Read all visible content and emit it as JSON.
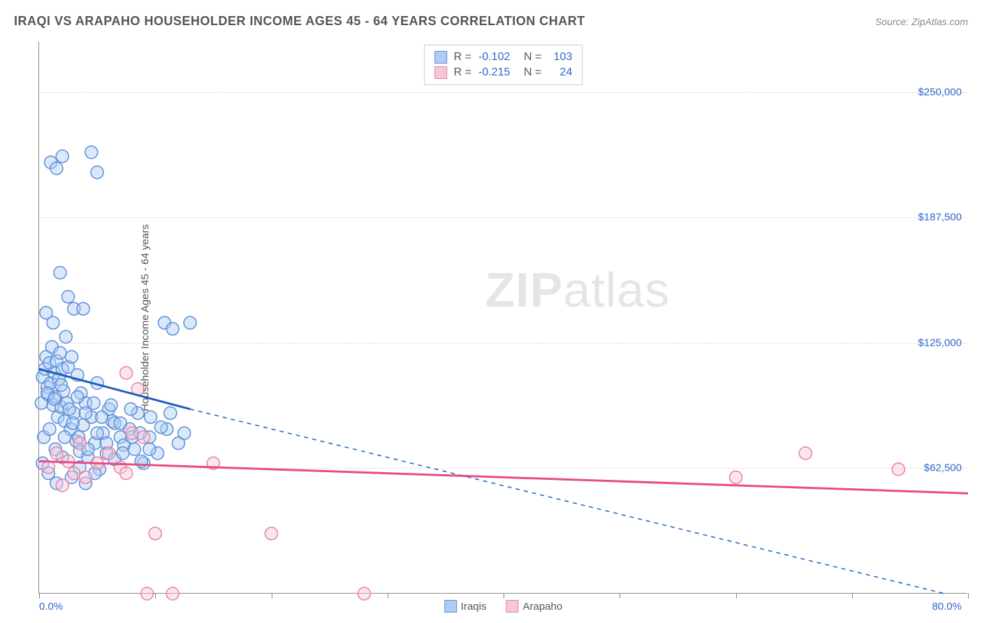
{
  "header": {
    "title": "IRAQI VS ARAPAHO HOUSEHOLDER INCOME AGES 45 - 64 YEARS CORRELATION CHART",
    "source": "Source: ZipAtlas.com"
  },
  "watermark": {
    "zip": "ZIP",
    "atlas": "atlas"
  },
  "chart": {
    "type": "scatter",
    "ylabel": "Householder Income Ages 45 - 64 years",
    "xlim": [
      0,
      80
    ],
    "ylim": [
      0,
      275000
    ],
    "xlabel_min": "0.0%",
    "xlabel_max": "80.0%",
    "xticks": [
      0,
      10,
      20,
      30,
      40,
      50,
      60,
      70,
      80
    ],
    "yticks": [
      {
        "value": 62500,
        "label": "$62,500"
      },
      {
        "value": 125000,
        "label": "$125,000"
      },
      {
        "value": 187500,
        "label": "$187,500"
      },
      {
        "value": 250000,
        "label": "$250,000"
      }
    ],
    "grid_color": "#dddddd",
    "background_color": "#ffffff",
    "marker_radius": 9,
    "marker_opacity": 0.45,
    "series": [
      {
        "name": "Iraqis",
        "color_fill": "#aeccf4",
        "color_stroke": "#5b8fd6",
        "line_color": "#1f5fbf",
        "stats": {
          "R": "-0.102",
          "N": "103"
        },
        "trend": {
          "x1": 0,
          "y1": 112000,
          "x2": 13,
          "y2": 92000,
          "x2_dash": 78,
          "y2_dash": 0
        },
        "points": [
          [
            0.3,
            108000
          ],
          [
            0.5,
            112000
          ],
          [
            0.6,
            118000
          ],
          [
            0.7,
            103000
          ],
          [
            0.8,
            99000
          ],
          [
            0.9,
            115000
          ],
          [
            1.0,
            105000
          ],
          [
            1.1,
            123000
          ],
          [
            1.2,
            94000
          ],
          [
            1.3,
            110000
          ],
          [
            1.4,
            98000
          ],
          [
            1.5,
            116000
          ],
          [
            1.6,
            88000
          ],
          [
            1.7,
            107000
          ],
          [
            1.8,
            120000
          ],
          [
            1.9,
            93000
          ],
          [
            2.0,
            112000
          ],
          [
            2.1,
            101000
          ],
          [
            2.2,
            86000
          ],
          [
            2.3,
            128000
          ],
          [
            2.4,
            95000
          ],
          [
            2.5,
            113000
          ],
          [
            2.7,
            82000
          ],
          [
            2.8,
            118000
          ],
          [
            3.0,
            90000
          ],
          [
            3.0,
            142000
          ],
          [
            3.2,
            76000
          ],
          [
            3.3,
            109000
          ],
          [
            3.5,
            71000
          ],
          [
            3.6,
            100000
          ],
          [
            3.8,
            84000
          ],
          [
            4.0,
            95000
          ],
          [
            4.2,
            68000
          ],
          [
            4.5,
            88000
          ],
          [
            4.8,
            75000
          ],
          [
            5.0,
            105000
          ],
          [
            5.2,
            62000
          ],
          [
            5.5,
            80000
          ],
          [
            5.8,
            70000
          ],
          [
            6.0,
            92000
          ],
          [
            6.3,
            86000
          ],
          [
            6.5,
            67000
          ],
          [
            7.0,
            78000
          ],
          [
            7.3,
            74000
          ],
          [
            7.8,
            82000
          ],
          [
            8.2,
            72000
          ],
          [
            8.5,
            90000
          ],
          [
            9.0,
            65000
          ],
          [
            9.5,
            78000
          ],
          [
            10.2,
            70000
          ],
          [
            10.8,
            135000
          ],
          [
            11.0,
            82000
          ],
          [
            11.5,
            132000
          ],
          [
            12.0,
            75000
          ],
          [
            12.5,
            80000
          ],
          [
            13.0,
            135000
          ],
          [
            0.3,
            65000
          ],
          [
            0.8,
            60000
          ],
          [
            1.5,
            55000
          ],
          [
            2.0,
            68000
          ],
          [
            2.8,
            58000
          ],
          [
            3.5,
            63000
          ],
          [
            4.0,
            55000
          ],
          [
            4.8,
            60000
          ],
          [
            0.6,
            140000
          ],
          [
            1.2,
            135000
          ],
          [
            2.5,
            148000
          ],
          [
            3.8,
            142000
          ],
          [
            1.8,
            160000
          ],
          [
            1.0,
            215000
          ],
          [
            2.0,
            218000
          ],
          [
            1.5,
            212000
          ],
          [
            4.5,
            220000
          ],
          [
            5.0,
            210000
          ],
          [
            0.4,
            78000
          ],
          [
            0.9,
            82000
          ],
          [
            1.4,
            72000
          ],
          [
            2.2,
            78000
          ],
          [
            2.9,
            85000
          ],
          [
            3.4,
            78000
          ],
          [
            4.2,
            72000
          ],
          [
            5.0,
            80000
          ],
          [
            5.8,
            75000
          ],
          [
            6.5,
            85000
          ],
          [
            7.2,
            70000
          ],
          [
            8.0,
            78000
          ],
          [
            8.8,
            66000
          ],
          [
            9.5,
            72000
          ],
          [
            0.2,
            95000
          ],
          [
            0.7,
            100000
          ],
          [
            1.3,
            97000
          ],
          [
            1.9,
            104000
          ],
          [
            2.6,
            92000
          ],
          [
            3.3,
            98000
          ],
          [
            4.0,
            90000
          ],
          [
            4.7,
            95000
          ],
          [
            5.4,
            88000
          ],
          [
            6.2,
            94000
          ],
          [
            7.0,
            85000
          ],
          [
            7.9,
            92000
          ],
          [
            8.7,
            80000
          ],
          [
            9.6,
            88000
          ],
          [
            10.5,
            83000
          ],
          [
            11.3,
            90000
          ]
        ]
      },
      {
        "name": "Arapaho",
        "color_fill": "#f7c7d6",
        "color_stroke": "#e87fa5",
        "line_color": "#e64b8a",
        "stats": {
          "R": "-0.215",
          "N": "24"
        },
        "trend": {
          "x1": 0,
          "y1": 66000,
          "x2": 80,
          "y2": 50000
        },
        "points": [
          [
            0.8,
            63000
          ],
          [
            1.5,
            70000
          ],
          [
            2.0,
            54000
          ],
          [
            2.5,
            66000
          ],
          [
            3.0,
            60000
          ],
          [
            3.5,
            75000
          ],
          [
            4.0,
            58000
          ],
          [
            5.0,
            65000
          ],
          [
            6.0,
            70000
          ],
          [
            7.0,
            63000
          ],
          [
            7.5,
            110000
          ],
          [
            8.0,
            80000
          ],
          [
            8.5,
            102000
          ],
          [
            9.0,
            78000
          ],
          [
            10.0,
            30000
          ],
          [
            7.5,
            60000
          ],
          [
            9.3,
            0
          ],
          [
            11.5,
            0
          ],
          [
            15.0,
            65000
          ],
          [
            20.0,
            30000
          ],
          [
            28.0,
            0
          ],
          [
            60.0,
            58000
          ],
          [
            66.0,
            70000
          ],
          [
            74.0,
            62000
          ]
        ]
      }
    ],
    "legend": {
      "items": [
        {
          "name": "Iraqis",
          "fill": "#aeccf4",
          "stroke": "#5b8fd6"
        },
        {
          "name": "Arapaho",
          "fill": "#f7c7d6",
          "stroke": "#e87fa5"
        }
      ]
    }
  }
}
